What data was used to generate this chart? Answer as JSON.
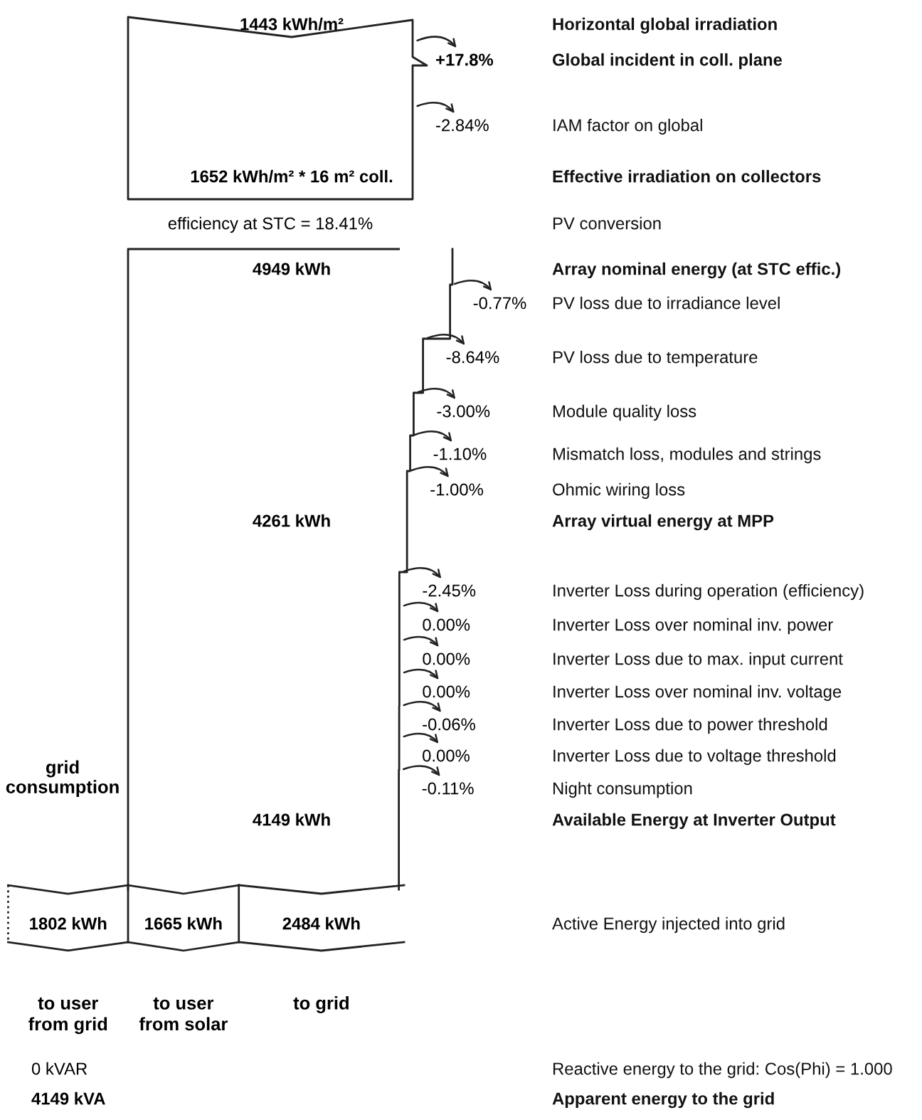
{
  "chart_data": [
    {
      "type": "other",
      "categories": [
        "Horizontal global irradiation",
        "Global incident in coll. plane",
        "IAM factor on global",
        "Effective irradiation on collectors",
        "PV conversion",
        "Array nominal energy (at STC effic.)",
        "PV loss due to irradiance level",
        "PV loss due to temperature",
        "Module quality loss",
        "Mismatch loss, modules and strings",
        "Ohmic wiring loss",
        "Array virtual energy at MPP",
        "Inverter Loss during operation (efficiency)",
        "Inverter Loss over nominal inv. power",
        "Inverter Loss due to max. input current",
        "Inverter Loss over nominal inv. voltage",
        "Inverter Loss due to power threshold",
        "Inverter Loss due to voltage threshold",
        "Night consumption",
        "Available Energy at Inverter Output",
        "Active Energy injected into grid",
        "Reactive energy to the grid: Cos(Phi) = 1.000",
        "Apparent energy to the grid"
      ],
      "series": [
        {
          "values": [
            1443,
            null,
            null,
            1652,
            null,
            4949,
            null,
            null,
            null,
            null,
            null,
            4261,
            null,
            null,
            null,
            null,
            null,
            null,
            null,
            4149,
            null,
            null,
            4149
          ],
          "value_labels": [
            "1443 kWh/m²",
            null,
            null,
            "1652 kWh/m² * 16 m² coll.",
            null,
            "4949 kWh",
            null,
            null,
            null,
            null,
            null,
            "4261 kWh",
            null,
            null,
            null,
            null,
            null,
            null,
            null,
            "4149 kWh",
            null,
            null,
            "4149 kVA"
          ]
        },
        {
          "values": [
            null,
            17.8,
            -2.84,
            null,
            null,
            null,
            -0.77,
            -8.64,
            -3.0,
            -1.1,
            -1.0,
            null,
            -2.45,
            0.0,
            0.0,
            0.0,
            -0.06,
            0.0,
            -0.11,
            null,
            null,
            null,
            null
          ],
          "value_labels": [
            null,
            "+17.8%",
            "-2.84%",
            null,
            null,
            null,
            "-0.77%",
            "-8.64%",
            "-3.00%",
            "-1.10%",
            "-1.00%",
            null,
            "-2.45%",
            "0.00%",
            "0.00%",
            "0.00%",
            "-0.06%",
            "0.00%",
            "-0.11%",
            null,
            null,
            null,
            null
          ]
        },
        {
          "values": [
            null,
            null,
            null,
            null,
            18.41,
            null,
            null,
            null,
            null,
            null,
            null,
            null,
            null,
            null,
            null,
            null,
            null,
            null,
            null,
            null,
            null,
            0,
            null
          ],
          "value_labels": [
            null,
            null,
            null,
            null,
            "efficiency at STC = 18.41%",
            null,
            null,
            null,
            null,
            null,
            null,
            null,
            null,
            null,
            null,
            null,
            null,
            null,
            null,
            null,
            null,
            "0 kVAR",
            null
          ]
        }
      ]
    },
    {
      "type": "other",
      "categories": [
        "to user\nfrom grid",
        "to user\nfrom solar",
        "to grid"
      ],
      "values": [
        1802,
        1665,
        2484
      ],
      "value_labels": [
        "1802 kWh",
        "1665 kWh",
        "2484 kWh"
      ],
      "annotations": [
        "grid\nconsumption"
      ]
    }
  ]
}
